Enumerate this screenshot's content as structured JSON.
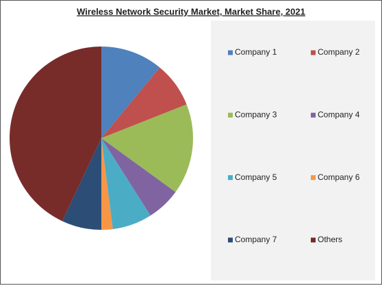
{
  "chart_data": {
    "type": "pie",
    "title": "Wireless Network Security Market, Market Share, 2021",
    "categories": [
      "Company 1",
      "Company 2",
      "Company 3",
      "Company 4",
      "Company 5",
      "Company 6",
      "Company 7",
      "Others"
    ],
    "values": [
      11,
      8,
      16,
      6,
      7,
      2,
      7,
      43
    ],
    "colors": [
      "#4f81bd",
      "#c0504d",
      "#9bbb59",
      "#8064a2",
      "#4bacc6",
      "#f79646",
      "#2c4d75",
      "#772c2a"
    ],
    "legend": "right"
  }
}
